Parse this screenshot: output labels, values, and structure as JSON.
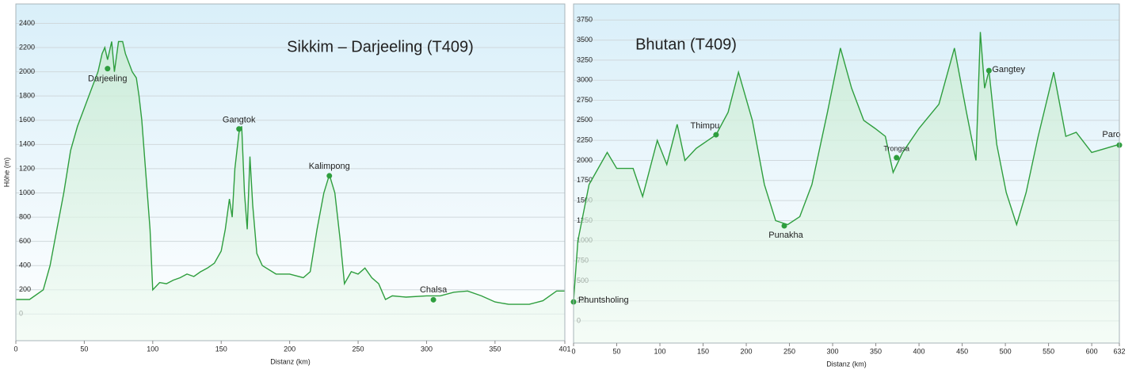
{
  "chart_data": [
    {
      "type": "line",
      "title": "Sikkim – Darjeeling  (T409)",
      "x_label": "Distanz  (km)",
      "y_label": "Höhe (m)",
      "xlim": [
        0,
        401
      ],
      "ylim": [
        -220,
        2560
      ],
      "xticks": [
        0,
        50,
        100,
        150,
        200,
        250,
        300,
        350,
        401
      ],
      "yticks": [
        0,
        200,
        400,
        600,
        800,
        1000,
        1200,
        1400,
        1600,
        1800,
        2000,
        2200,
        2400
      ],
      "grid": true,
      "x": [
        0,
        10,
        20,
        25,
        30,
        35,
        40,
        45,
        50,
        55,
        60,
        63,
        65,
        67,
        70,
        72,
        75,
        78,
        80,
        85,
        88,
        90,
        92,
        95,
        98,
        100,
        105,
        110,
        115,
        120,
        125,
        130,
        135,
        140,
        145,
        150,
        153,
        156,
        158,
        160,
        163,
        165,
        167,
        169,
        171,
        173,
        176,
        180,
        190,
        200,
        210,
        215,
        220,
        225,
        229,
        233,
        237,
        240,
        245,
        250,
        255,
        260,
        265,
        270,
        275,
        285,
        300,
        310,
        320,
        330,
        340,
        350,
        360,
        375,
        385,
        395,
        401
      ],
      "series": [
        {
          "color": "#2e9e3e",
          "values": [
            120,
            120,
            200,
            400,
            700,
            1000,
            1350,
            1550,
            1700,
            1850,
            2000,
            2150,
            2200,
            2100,
            2250,
            2000,
            2250,
            2250,
            2150,
            2000,
            1950,
            1800,
            1600,
            1150,
            700,
            200,
            260,
            250,
            280,
            300,
            330,
            310,
            350,
            380,
            420,
            520,
            700,
            950,
            800,
            1200,
            1500,
            1550,
            1000,
            700,
            1300,
            900,
            500,
            400,
            330,
            330,
            300,
            350,
            700,
            1000,
            1150,
            1000,
            600,
            250,
            350,
            330,
            380,
            300,
            250,
            120,
            150,
            140,
            150,
            150,
            180,
            190,
            150,
            100,
            80,
            80,
            110,
            190,
            190
          ]
        }
      ],
      "annotations": [
        {
          "text": "Darjeeling",
          "x": 67,
          "y": 2026
        },
        {
          "text": "Gangtok",
          "x": 163,
          "y": 1528
        },
        {
          "text": "Kalimpong",
          "x": 229,
          "y": 1141
        },
        {
          "text": "Chalsa",
          "x": 305,
          "y": 118
        }
      ]
    },
    {
      "type": "line",
      "title": "Bhutan (T409)",
      "x_label": "Distanz  (km)",
      "xlim": [
        0,
        632
      ],
      "ylim": [
        -276,
        3950
      ],
      "xticks": [
        0,
        50,
        100,
        150,
        200,
        250,
        300,
        350,
        400,
        450,
        500,
        550,
        600,
        632
      ],
      "yticks": [
        0,
        250,
        500,
        750,
        1000,
        1250,
        1500,
        1750,
        2000,
        2250,
        2500,
        2750,
        3000,
        3250,
        3500,
        3750
      ],
      "grid": true,
      "x": [
        0,
        5,
        18,
        39,
        50,
        69,
        80,
        97,
        108,
        120,
        129,
        142,
        165,
        179,
        191,
        207,
        221,
        234,
        248,
        262,
        276,
        294,
        309,
        322,
        336,
        349,
        361,
        370,
        381,
        400,
        423,
        441,
        455,
        466,
        471,
        476,
        481,
        490,
        501,
        513,
        524,
        538,
        556,
        570,
        582,
        600,
        616,
        632
      ],
      "series": [
        {
          "color": "#2e9e3e",
          "values": [
            250,
            1000,
            1700,
            2100,
            1900,
            1900,
            1550,
            2250,
            1950,
            2450,
            2000,
            2150,
            2320,
            2600,
            3100,
            2500,
            1700,
            1250,
            1200,
            1300,
            1700,
            2600,
            3400,
            2900,
            2500,
            2400,
            2300,
            1850,
            2100,
            2400,
            2700,
            3400,
            2600,
            2000,
            3600,
            2900,
            3120,
            2200,
            1600,
            1200,
            1600,
            2300,
            3100,
            2300,
            2350,
            2100,
            2150,
            2200
          ]
        }
      ],
      "annotations": [
        {
          "text": "Phuntsholing",
          "x": 0,
          "y": 237
        },
        {
          "text": "Thimpu",
          "x": 165,
          "y": 2320
        },
        {
          "text": "Punakha",
          "x": 244,
          "y": 1185
        },
        {
          "text": "Trongsa",
          "x": 374,
          "y": 2034
        },
        {
          "text": "Gangtey",
          "x": 481,
          "y": 3119
        },
        {
          "text": "Paro",
          "x": 632,
          "y": 2191
        }
      ]
    }
  ]
}
